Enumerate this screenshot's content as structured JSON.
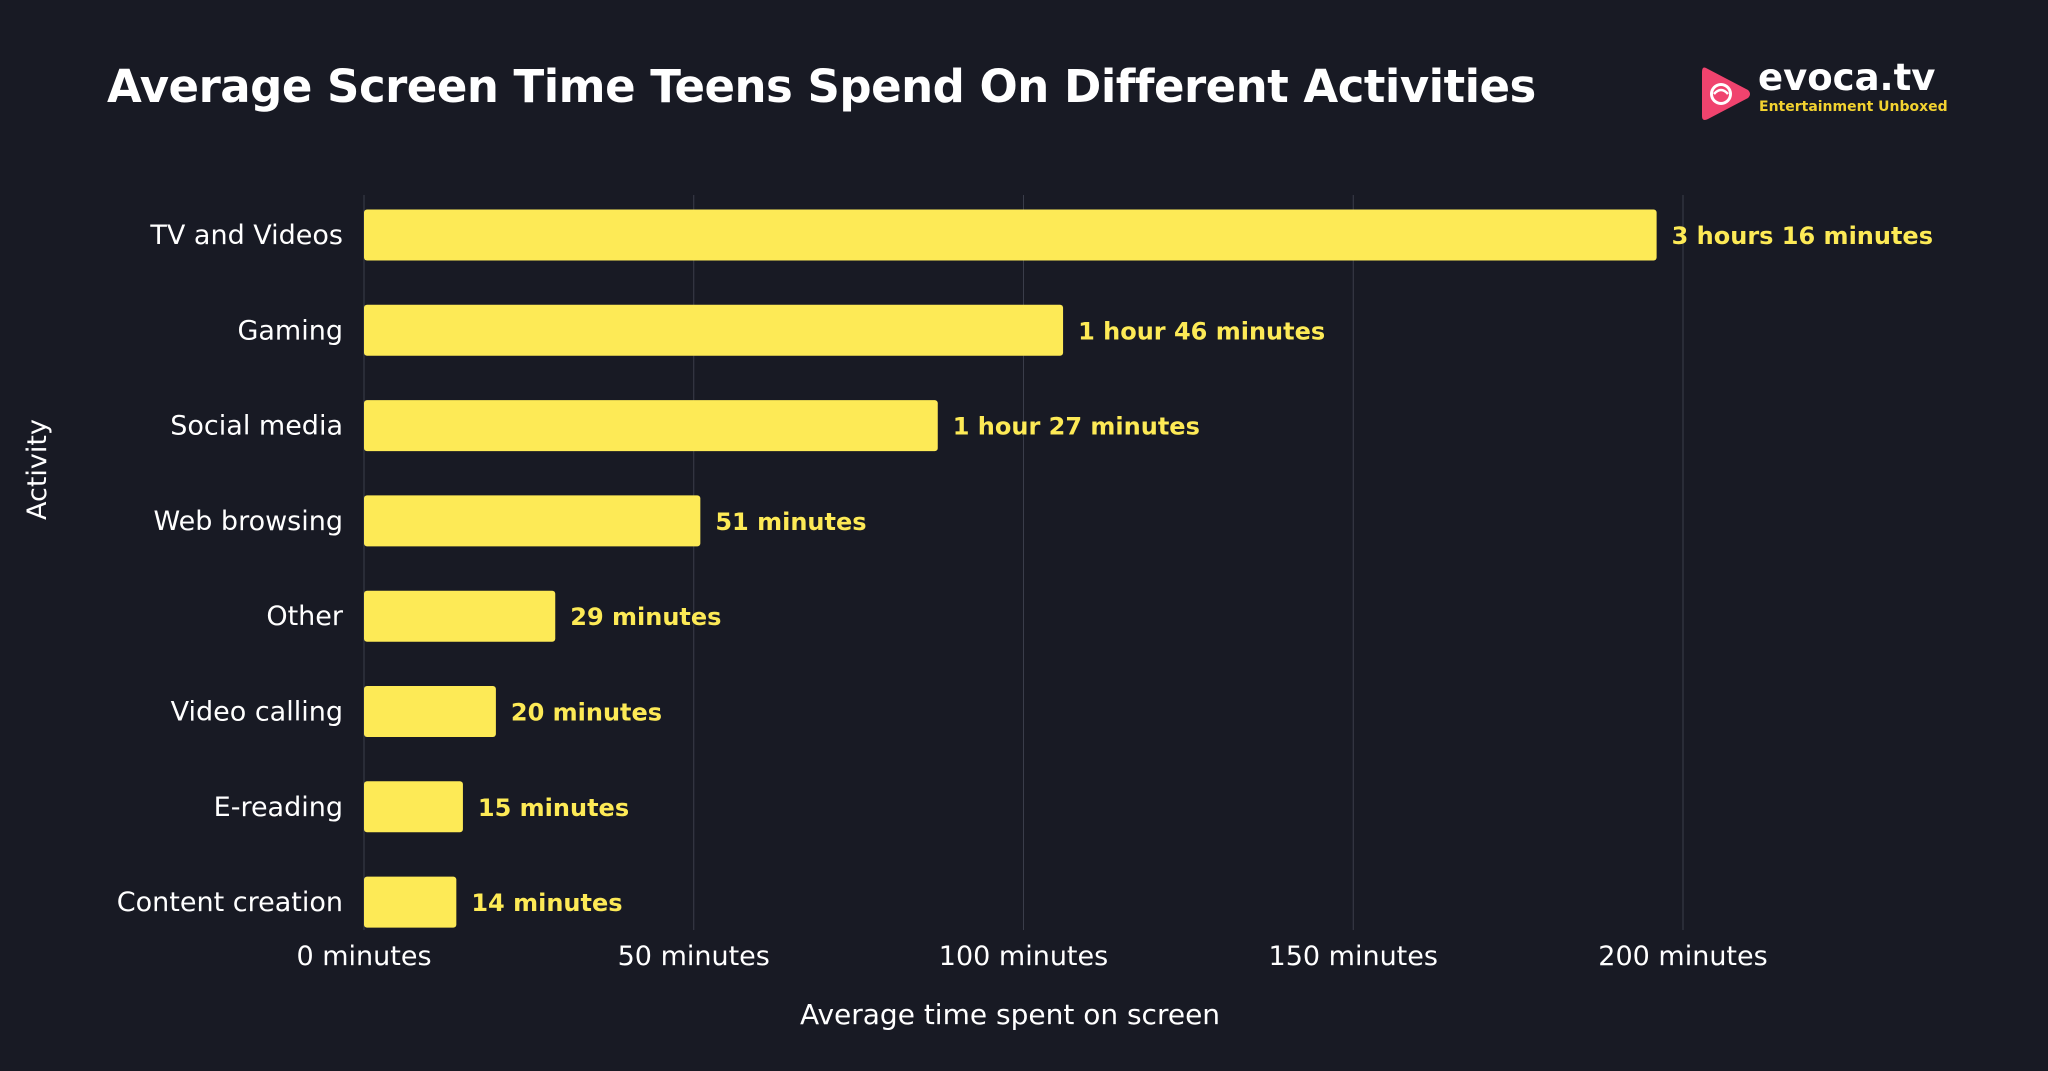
{
  "logo": {
    "name": "evoca.tv",
    "tagline": "Entertainment Unboxed"
  },
  "colors": {
    "background": "#181a24",
    "bar": "#fdea56",
    "value_label": "#fdea56",
    "text": "#ffffff",
    "grid": "#3a3d4a",
    "logo_accent": "#f0436e"
  },
  "chart_data": {
    "type": "bar",
    "orientation": "horizontal",
    "title": "Average Screen Time Teens Spend On Different Activities",
    "xlabel": "Average time spent on screen",
    "ylabel": "Activity",
    "xlim": [
      0,
      200
    ],
    "x_ticks": [
      0,
      50,
      100,
      150,
      200
    ],
    "x_tick_labels": [
      "0 minutes",
      "50 minutes",
      "100 minutes",
      "150 minutes",
      "200 minutes"
    ],
    "grid": "vertical",
    "categories": [
      "TV and Videos",
      "Gaming",
      "Social media",
      "Web browsing",
      "Other",
      "Video calling",
      "E-reading",
      "Content creation"
    ],
    "values": [
      196,
      106,
      87,
      51,
      29,
      20,
      15,
      14
    ],
    "data_labels": [
      "3 hours 16 minutes",
      "1 hour 46 minutes",
      "1 hour 27 minutes",
      "51 minutes",
      "29 minutes",
      "20 minutes",
      "15 minutes",
      "14 minutes"
    ]
  }
}
